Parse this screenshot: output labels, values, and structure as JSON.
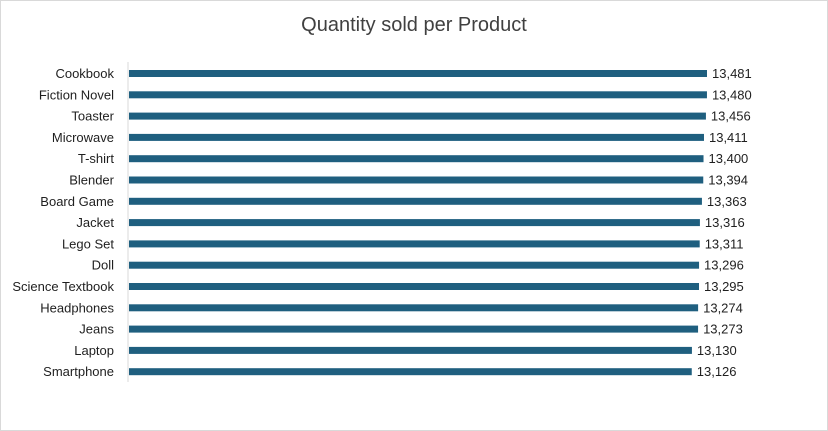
{
  "chart_data": {
    "type": "bar",
    "orientation": "horizontal",
    "title": "Quantity sold per Product",
    "xlabel": "",
    "ylabel": "",
    "categories": [
      "Cookbook",
      "Fiction Novel",
      "Toaster",
      "Microwave",
      "T-shirt",
      "Blender",
      "Board Game",
      "Jacket",
      "Lego Set",
      "Doll",
      "Science Textbook",
      "Headphones",
      "Jeans",
      "Laptop",
      "Smartphone"
    ],
    "values": [
      13481,
      13480,
      13456,
      13411,
      13400,
      13394,
      13363,
      13316,
      13311,
      13296,
      13295,
      13274,
      13273,
      13130,
      13126
    ],
    "value_labels": [
      "13,481",
      "13,480",
      "13,456",
      "13,411",
      "13,400",
      "13,394",
      "13,363",
      "13,316",
      "13,311",
      "13,296",
      "13,295",
      "13,274",
      "13,273",
      "13,130",
      "13,126"
    ],
    "xlim": [
      0,
      13481
    ],
    "grid": false,
    "legend": "none",
    "bar_color": "#1f5f7f"
  }
}
